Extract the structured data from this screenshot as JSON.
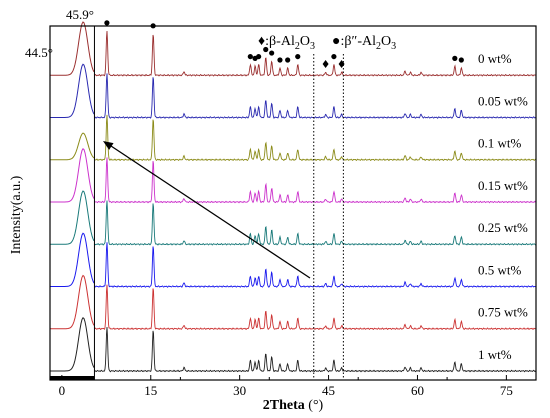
{
  "chart_data": {
    "type": "line",
    "title": "",
    "xlabel": "2Theta",
    "xlabel_unit": " (°)",
    "ylabel": "Intensity(a.u.)",
    "xlim": [
      -2,
      80
    ],
    "xticks": [
      0,
      15,
      30,
      45,
      60,
      75
    ],
    "grid": false,
    "legend_items": [
      {
        "symbol": "♦",
        "text": ":β-Al",
        "sub": "2",
        "text2": "O",
        "sub2": "3"
      },
      {
        "symbol": "●",
        "text": ":β″-Al",
        "sub": "2",
        "text2": "O",
        "sub2": "3"
      }
    ],
    "inset_angle_labels": [
      "45.9°",
      "44.5°"
    ],
    "dotted_region": [
      42.5,
      47.5
    ],
    "peaks_2theta": [
      7.6,
      15.4,
      20.6,
      31.8,
      32.6,
      33.2,
      34.4,
      35.4,
      36.8,
      38.1,
      39.8,
      44.5,
      45.9,
      47.2,
      57.9,
      58.8,
      60.6,
      66.3,
      67.4
    ],
    "peak_heights": [
      0.75,
      0.7,
      0.06,
      0.18,
      0.15,
      0.18,
      0.3,
      0.24,
      0.12,
      0.12,
      0.18,
      0.05,
      0.18,
      0.05,
      0.07,
      0.05,
      0.05,
      0.15,
      0.12
    ],
    "beta_double_prime_markers_2theta": [
      7.6,
      15.4,
      31.8,
      32.6,
      33.2,
      34.4,
      35.4,
      36.8,
      38.1,
      39.8,
      45.9,
      66.3,
      67.4
    ],
    "beta_markers_2theta": [
      44.5,
      47.2
    ],
    "series": [
      {
        "name": "0 wt%",
        "color": "#9b3030"
      },
      {
        "name": "0.05 wt%",
        "color": "#2a2ab0"
      },
      {
        "name": "0.1 wt%",
        "color": "#8c8c1a"
      },
      {
        "name": "0.15 wt%",
        "color": "#cc33cc"
      },
      {
        "name": "0.25 wt%",
        "color": "#1a7a7a"
      },
      {
        "name": "0.5 wt%",
        "color": "#1a1aee"
      },
      {
        "name": "0.75 wt%",
        "color": "#cc3333"
      },
      {
        "name": "1 wt%",
        "color": "#222222"
      }
    ]
  }
}
